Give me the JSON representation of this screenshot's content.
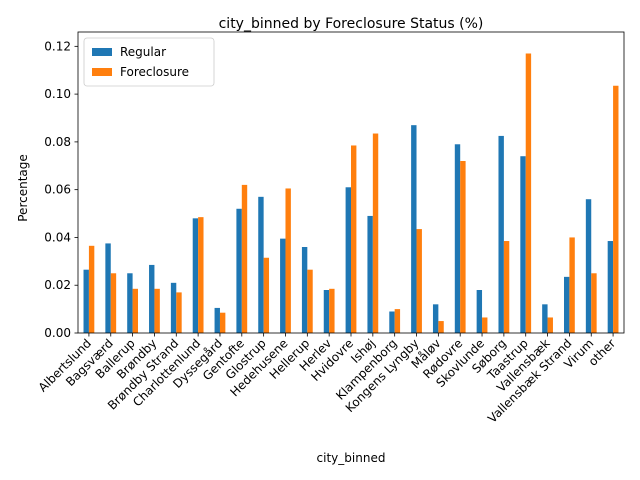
{
  "chart_data": {
    "type": "bar",
    "title": "city_binned by Foreclosure Status (%)",
    "xlabel": "city_binned",
    "ylabel": "Percentage",
    "ylim": [
      0,
      0.126
    ],
    "yticks": [
      "0.00",
      "0.02",
      "0.04",
      "0.06",
      "0.08",
      "0.10",
      "0.12"
    ],
    "ytick_values": [
      0,
      0.02,
      0.04,
      0.06,
      0.08,
      0.1,
      0.12
    ],
    "grid": false,
    "legend_position": "top-left",
    "categories": [
      "Albertslund",
      "Bagsværd",
      "Ballerup",
      "Brøndby",
      "Brøndby Strand",
      "Charlottenlund",
      "Dyssegård",
      "Gentofte",
      "Glostrup",
      "Hedehusene",
      "Hellerup",
      "Herlev",
      "Hvidovre",
      "Ishøj",
      "Klampenborg",
      "Kongens Lyngby",
      "Måløv",
      "Rødovre",
      "Skovlunde",
      "Søborg",
      "Taastrup",
      "Vallensbæk",
      "Vallensbæk Strand",
      "Virum",
      "other"
    ],
    "series": [
      {
        "name": "Regular",
        "color": "#1f77b4",
        "values": [
          0.0265,
          0.0375,
          0.025,
          0.0285,
          0.021,
          0.048,
          0.0105,
          0.052,
          0.057,
          0.0395,
          0.036,
          0.018,
          0.061,
          0.049,
          0.009,
          0.087,
          0.012,
          0.079,
          0.018,
          0.0825,
          0.074,
          0.012,
          0.0235,
          0.056,
          0.0385
        ]
      },
      {
        "name": "Foreclosure",
        "color": "#ff7f0e",
        "values": [
          0.0365,
          0.025,
          0.0185,
          0.0185,
          0.017,
          0.0485,
          0.0085,
          0.062,
          0.0315,
          0.0605,
          0.0265,
          0.0185,
          0.0785,
          0.0835,
          0.01,
          0.0435,
          0.005,
          0.072,
          0.0065,
          0.0385,
          0.117,
          0.0065,
          0.04,
          0.025,
          0.1035
        ]
      }
    ]
  }
}
